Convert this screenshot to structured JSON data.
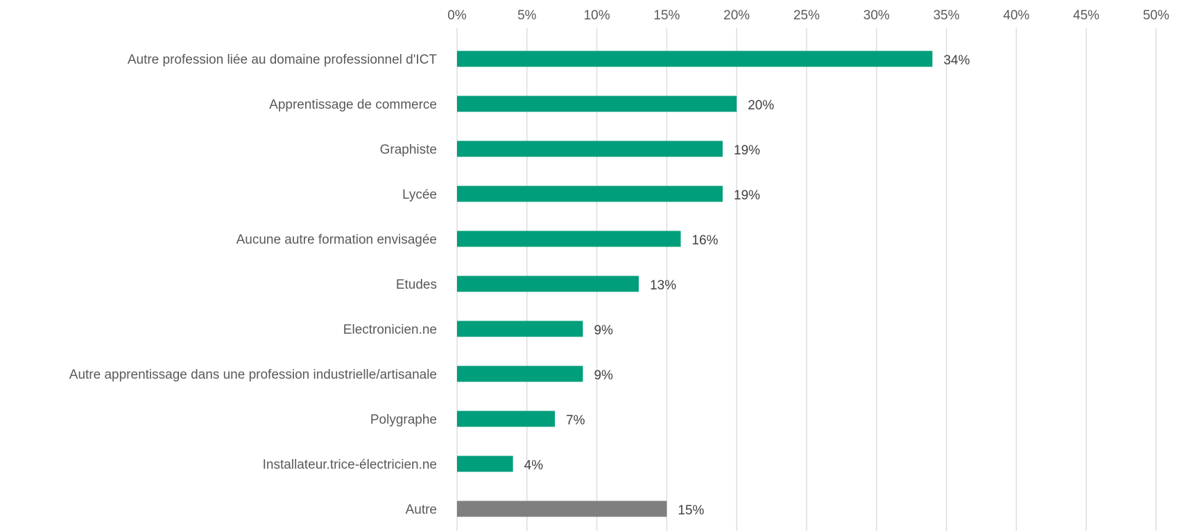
{
  "chart_data": {
    "type": "bar",
    "orientation": "horizontal",
    "title": "",
    "xlabel": "",
    "ylabel": "",
    "xlim": [
      0,
      50
    ],
    "x_ticks": [
      "0%",
      "5%",
      "10%",
      "15%",
      "20%",
      "25%",
      "30%",
      "35%",
      "40%",
      "45%",
      "50%"
    ],
    "x_axis_position": "top",
    "grid": true,
    "legend": "none",
    "categories": [
      "Autre profession liée au domaine professionnel d'ICT",
      "Apprentissage de commerce",
      "Graphiste",
      "Lycée",
      "Aucune autre formation envisagée",
      "Etudes",
      "Electronicien.ne",
      "Autre apprentissage dans une profession industrielle/artisanale",
      "Polygraphe",
      "Installateur.trice-électricien.ne",
      "Autre"
    ],
    "values": [
      34,
      20,
      19,
      19,
      16,
      13,
      9,
      9,
      7,
      4,
      15
    ],
    "data_labels": [
      "34%",
      "20%",
      "19%",
      "19%",
      "16%",
      "13%",
      "9%",
      "9%",
      "7%",
      "4%",
      "15%"
    ],
    "bar_colors": [
      "#009e7a",
      "#009e7a",
      "#009e7a",
      "#009e7a",
      "#009e7a",
      "#009e7a",
      "#009e7a",
      "#009e7a",
      "#009e7a",
      "#009e7a",
      "#7f7f7f"
    ]
  }
}
